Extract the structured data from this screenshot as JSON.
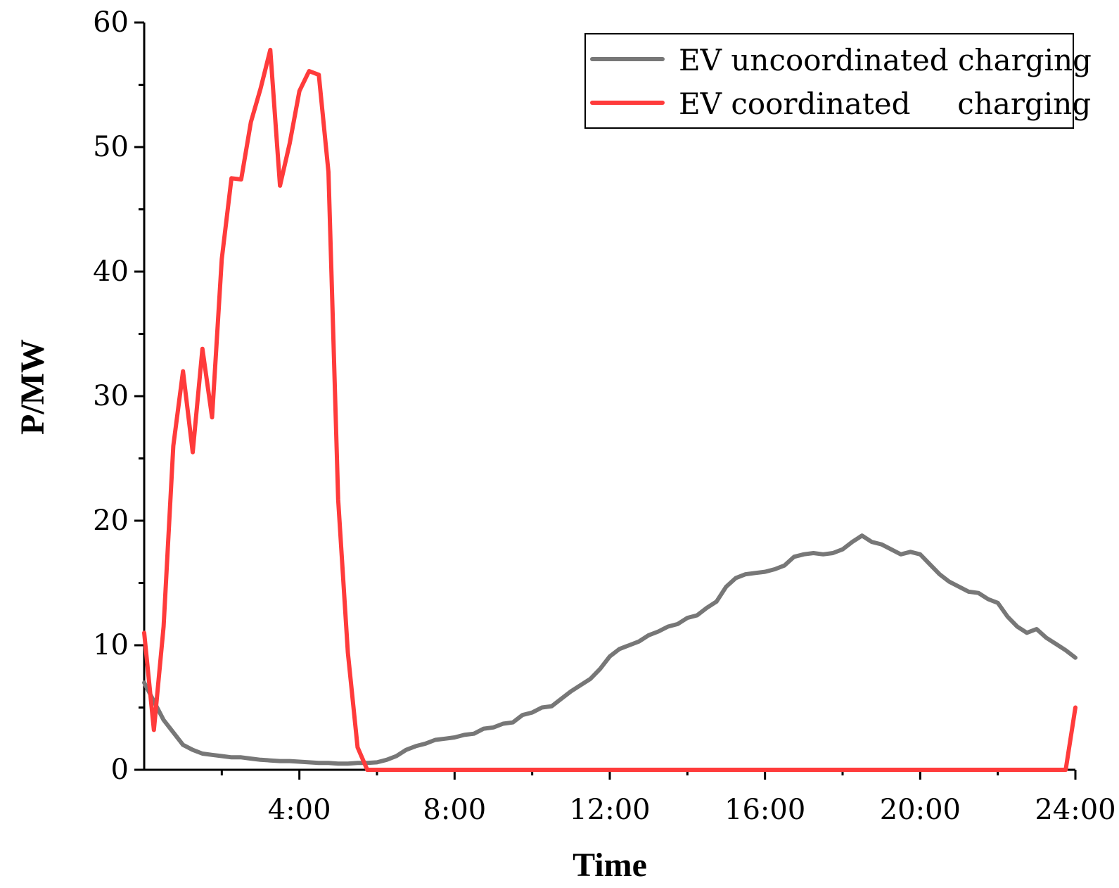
{
  "chart_data": {
    "type": "line",
    "title": "",
    "xlabel": "Time",
    "ylabel": "P/MW",
    "xlim": [
      0,
      24
    ],
    "ylim": [
      0,
      60
    ],
    "x_ticks": [
      {
        "value": 4,
        "label": "4:00"
      },
      {
        "value": 8,
        "label": "8:00"
      },
      {
        "value": 12,
        "label": "12:00"
      },
      {
        "value": 16,
        "label": "16:00"
      },
      {
        "value": 20,
        "label": "20:00"
      },
      {
        "value": 24,
        "label": "24:00"
      }
    ],
    "y_ticks": [
      0,
      10,
      20,
      30,
      40,
      50,
      60
    ],
    "legend_position": "top-right",
    "series": [
      {
        "name": "EV uncoordinated charging",
        "color": "#777777",
        "x": [
          0,
          0.25,
          0.5,
          0.75,
          1.0,
          1.25,
          1.5,
          1.75,
          2.0,
          2.25,
          2.5,
          2.75,
          3.0,
          3.25,
          3.5,
          3.75,
          4.0,
          4.25,
          4.5,
          4.75,
          5.0,
          5.25,
          5.5,
          5.75,
          6.0,
          6.25,
          6.5,
          6.75,
          7.0,
          7.25,
          7.5,
          7.75,
          8.0,
          8.25,
          8.5,
          8.75,
          9.0,
          9.25,
          9.5,
          9.75,
          10.0,
          10.25,
          10.5,
          10.75,
          11.0,
          11.25,
          11.5,
          11.75,
          12.0,
          12.25,
          12.5,
          12.75,
          13.0,
          13.25,
          13.5,
          13.75,
          14.0,
          14.25,
          14.5,
          14.75,
          15.0,
          15.25,
          15.5,
          15.75,
          16.0,
          16.25,
          16.5,
          16.75,
          17.0,
          17.25,
          17.5,
          17.75,
          18.0,
          18.25,
          18.5,
          18.75,
          19.0,
          19.25,
          19.5,
          19.75,
          20.0,
          20.25,
          20.5,
          20.75,
          21.0,
          21.25,
          21.5,
          21.75,
          22.0,
          22.25,
          22.5,
          22.75,
          23.0,
          23.25,
          23.5,
          23.75,
          24.0
        ],
        "values": [
          7.0,
          5.5,
          4.0,
          3.0,
          2.0,
          1.6,
          1.3,
          1.2,
          1.1,
          1.0,
          1.0,
          0.9,
          0.8,
          0.75,
          0.7,
          0.7,
          0.65,
          0.6,
          0.55,
          0.55,
          0.5,
          0.5,
          0.55,
          0.55,
          0.6,
          0.8,
          1.1,
          1.6,
          1.9,
          2.1,
          2.4,
          2.5,
          2.6,
          2.8,
          2.9,
          3.3,
          3.4,
          3.7,
          3.8,
          4.4,
          4.6,
          5.0,
          5.1,
          5.7,
          6.3,
          6.8,
          7.3,
          8.1,
          9.1,
          9.7,
          10.0,
          10.3,
          10.8,
          11.1,
          11.5,
          11.7,
          12.2,
          12.4,
          13.0,
          13.5,
          14.7,
          15.4,
          15.7,
          15.8,
          15.9,
          16.1,
          16.4,
          17.1,
          17.3,
          17.4,
          17.3,
          17.4,
          17.7,
          18.3,
          18.8,
          18.3,
          18.1,
          17.7,
          17.3,
          17.5,
          17.3,
          16.5,
          15.7,
          15.1,
          14.7,
          14.3,
          14.2,
          13.7,
          13.4,
          12.3,
          11.5,
          11.0,
          11.3,
          10.6,
          10.1,
          9.6,
          9.0
        ]
      },
      {
        "name": "EV coordinated     charging",
        "color": "#ff3b3b",
        "x": [
          0,
          0.25,
          0.5,
          0.75,
          1.0,
          1.25,
          1.5,
          1.75,
          2.0,
          2.25,
          2.5,
          2.75,
          3.0,
          3.25,
          3.5,
          3.75,
          4.0,
          4.25,
          4.5,
          4.75,
          5.0,
          5.25,
          5.5,
          5.75,
          6.0,
          6.25,
          23.75,
          24.0
        ],
        "values": [
          11.0,
          3.2,
          11.5,
          26.0,
          32.0,
          25.5,
          33.8,
          28.3,
          41.0,
          47.5,
          47.4,
          52.0,
          54.7,
          57.8,
          46.9,
          50.3,
          54.5,
          56.1,
          55.8,
          48.0,
          21.7,
          9.4,
          1.8,
          0.0,
          0.0,
          0.0,
          0.0,
          5.0
        ]
      }
    ]
  }
}
